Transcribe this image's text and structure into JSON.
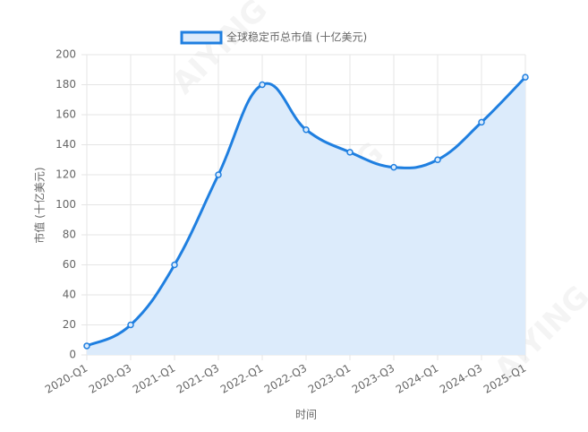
{
  "chart_data": {
    "type": "line",
    "legend": "全球稳定币总市值 (十亿美元)",
    "x_label": "时间",
    "y_label": "市值 (十亿美元)",
    "watermark": "AIYING",
    "categories": [
      "2020-Q1",
      "2020-Q3",
      "2021-Q1",
      "2021-Q3",
      "2022-Q1",
      "2022-Q3",
      "2023-Q1",
      "2023-Q3",
      "2024-Q1",
      "2024-Q3",
      "2025-Q1"
    ],
    "values": [
      6,
      20,
      60,
      120,
      180,
      150,
      135,
      125,
      130,
      155,
      185
    ],
    "color": "#1f7fe0",
    "fill": "#dcebfb",
    "ylim": [
      0,
      200
    ],
    "yticks": [
      0,
      20,
      40,
      60,
      80,
      100,
      120,
      140,
      160,
      180,
      200
    ],
    "grid": true
  }
}
